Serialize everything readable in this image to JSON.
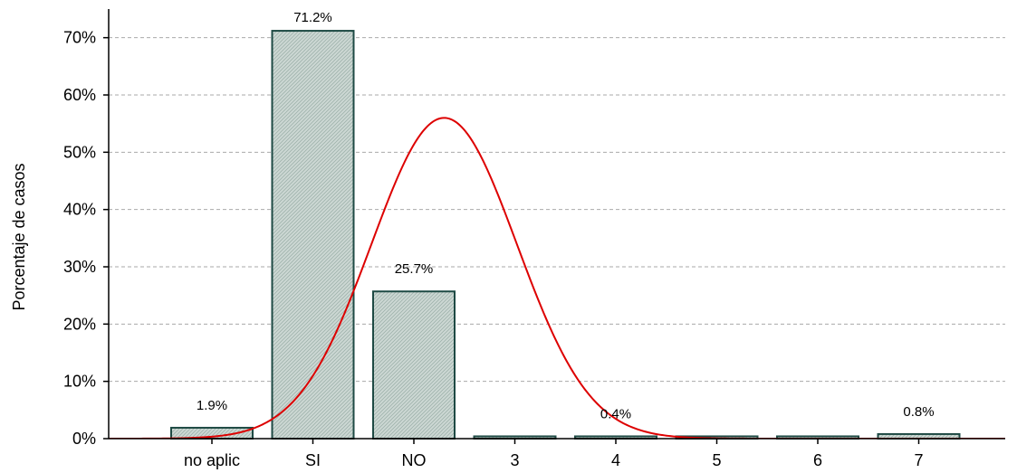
{
  "chart_data": {
    "type": "bar",
    "title": "",
    "xlabel": "",
    "ylabel": "Porcentaje de casos",
    "categories": [
      "no aplic",
      "SI",
      "NO",
      "3",
      "4",
      "5",
      "6",
      "7"
    ],
    "values": [
      1.9,
      71.2,
      25.7,
      0.4,
      0.4,
      0.4,
      0.4,
      0.8
    ],
    "data_labels": [
      "1.9%",
      "71.2%",
      "25.7%",
      "",
      "0.4%",
      "",
      "",
      "0.8%"
    ],
    "ylim": [
      0,
      75
    ],
    "yticks": [
      0,
      10,
      20,
      30,
      40,
      50,
      60,
      70
    ],
    "ytick_labels": [
      "0%",
      "10%",
      "20%",
      "30%",
      "40%",
      "50%",
      "60%",
      "70%"
    ],
    "grid": true,
    "legend": "none",
    "overlay": {
      "type": "normal-curve",
      "color": "#dd0000",
      "mean_category_position": 2.3,
      "sd_category_units": 0.72,
      "peak_value": 56
    },
    "colors": {
      "bar_fill": "#cdd8d4",
      "bar_stroke": "#1e4a44",
      "grid": "#aaaaaa",
      "axis": "#000000"
    }
  }
}
